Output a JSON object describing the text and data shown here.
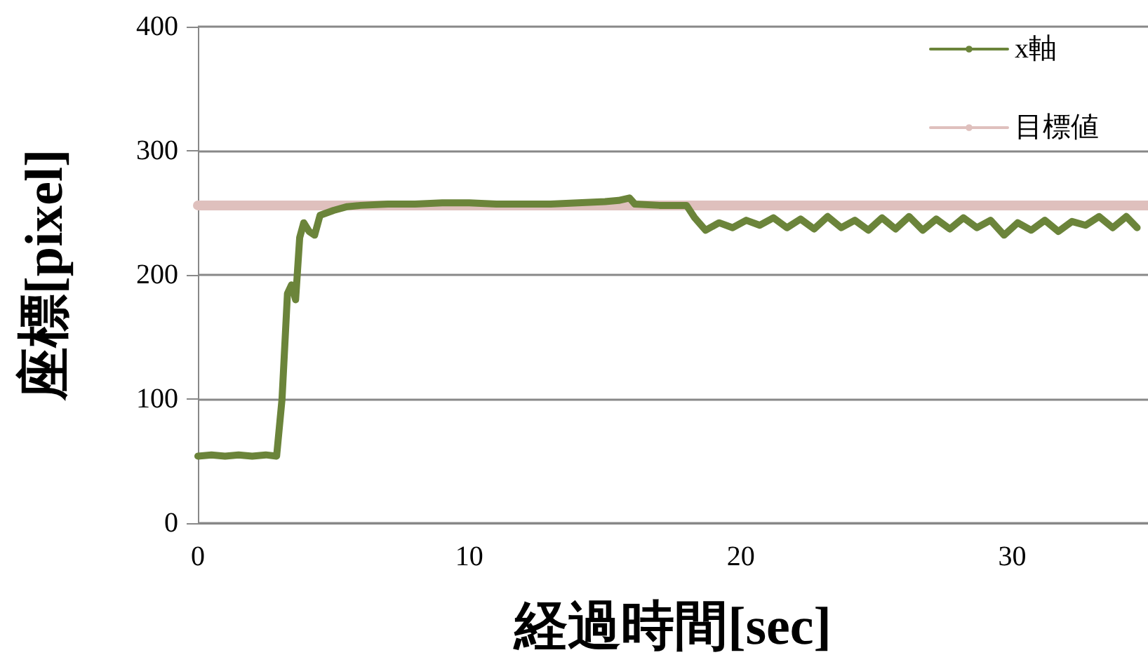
{
  "chart_data": {
    "type": "line",
    "xlabel": "経過時間[sec]",
    "ylabel": "座標[pixel]",
    "xlim": [
      0,
      35
    ],
    "xticks": [
      0,
      10,
      20,
      30
    ],
    "ylim": [
      0,
      400
    ],
    "yticks": [
      0,
      100,
      200,
      300,
      400
    ],
    "grid": "y",
    "legend": "top right",
    "line_style": "solid",
    "series": [
      {
        "name": "x軸",
        "color": "#6b843a",
        "x": [
          0,
          0.5,
          1,
          1.5,
          2,
          2.5,
          2.9,
          3.1,
          3.3,
          3.45,
          3.6,
          3.75,
          3.9,
          4.1,
          4.3,
          4.5,
          5,
          5.5,
          6,
          7,
          8,
          9,
          10,
          11,
          12,
          13,
          14,
          15,
          15.5,
          15.9,
          16.1,
          17,
          18,
          18.3,
          18.7,
          19.2,
          19.7,
          20.2,
          20.7,
          21.2,
          21.7,
          22.2,
          22.7,
          23.2,
          23.7,
          24.2,
          24.7,
          25.2,
          25.7,
          26.2,
          26.7,
          27.2,
          27.7,
          28.2,
          28.7,
          29.2,
          29.7,
          30.2,
          30.7,
          31.2,
          31.7,
          32.2,
          32.7,
          33.2,
          33.7,
          34.2,
          34.6
        ],
        "values": [
          54,
          55,
          54,
          55,
          54,
          55,
          54,
          100,
          185,
          192,
          180,
          230,
          242,
          235,
          232,
          248,
          252,
          255,
          256,
          257,
          257,
          258,
          258,
          257,
          257,
          257,
          258,
          259,
          260,
          262,
          257,
          256,
          256,
          246,
          236,
          242,
          238,
          244,
          240,
          246,
          238,
          245,
          237,
          247,
          238,
          244,
          236,
          246,
          237,
          247,
          236,
          245,
          237,
          246,
          238,
          244,
          232,
          242,
          236,
          244,
          235,
          243,
          240,
          247,
          238,
          247,
          238
        ]
      },
      {
        "name": "目標値",
        "color": "#dfc0bd",
        "x": [
          0,
          35
        ],
        "values": [
          256,
          256
        ]
      }
    ]
  }
}
